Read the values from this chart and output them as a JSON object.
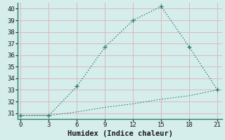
{
  "xlabel": "Humidex (Indice chaleur)",
  "x": [
    0,
    3,
    6,
    9,
    12,
    15,
    18,
    21
  ],
  "line1_y": [
    30.8,
    30.8,
    33.3,
    36.7,
    39.0,
    40.2,
    36.7,
    33.0
  ],
  "line2_y": [
    30.8,
    30.8,
    31.1,
    31.5,
    31.8,
    32.2,
    32.5,
    33.0
  ],
  "line_color": "#2e7d6e",
  "background_color": "#d5eeeb",
  "grid_color": "#d9b8bc",
  "spine_color": "#2e7d6e",
  "ylim": [
    30.5,
    40.5
  ],
  "xlim": [
    -0.3,
    21.5
  ],
  "yticks": [
    31,
    32,
    33,
    34,
    35,
    36,
    37,
    38,
    39,
    40
  ],
  "xticks": [
    0,
    3,
    6,
    9,
    12,
    15,
    18,
    21
  ],
  "tick_fontsize": 6.5,
  "xlabel_fontsize": 7.5
}
